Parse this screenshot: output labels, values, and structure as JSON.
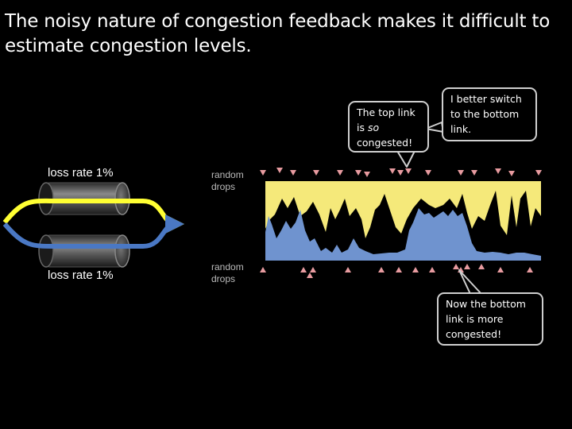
{
  "slide": {
    "title": "The noisy nature of congestion feedback makes it difficult to estimate congestion levels."
  },
  "links": {
    "top": {
      "loss_label": "loss rate 1%",
      "drops_label": "random drops",
      "color": "#ffff33"
    },
    "bottom": {
      "loss_label": "loss rate 1%",
      "drops_label": "random drops",
      "color": "#4a78c4"
    }
  },
  "callouts": {
    "top_congested": "The top link is so congested!",
    "top_congested_prefix": "The top link is ",
    "top_congested_em": "so",
    "top_congested_suffix": " congested!",
    "switch": "I better switch to the bottom link.",
    "bottom_congested": "Now the bottom link is more congested!"
  },
  "colors": {
    "background": "#000000",
    "top_area": "#f5e97a",
    "bottom_area": "#6f93cf",
    "drop_marker": "#e89ba0"
  }
}
